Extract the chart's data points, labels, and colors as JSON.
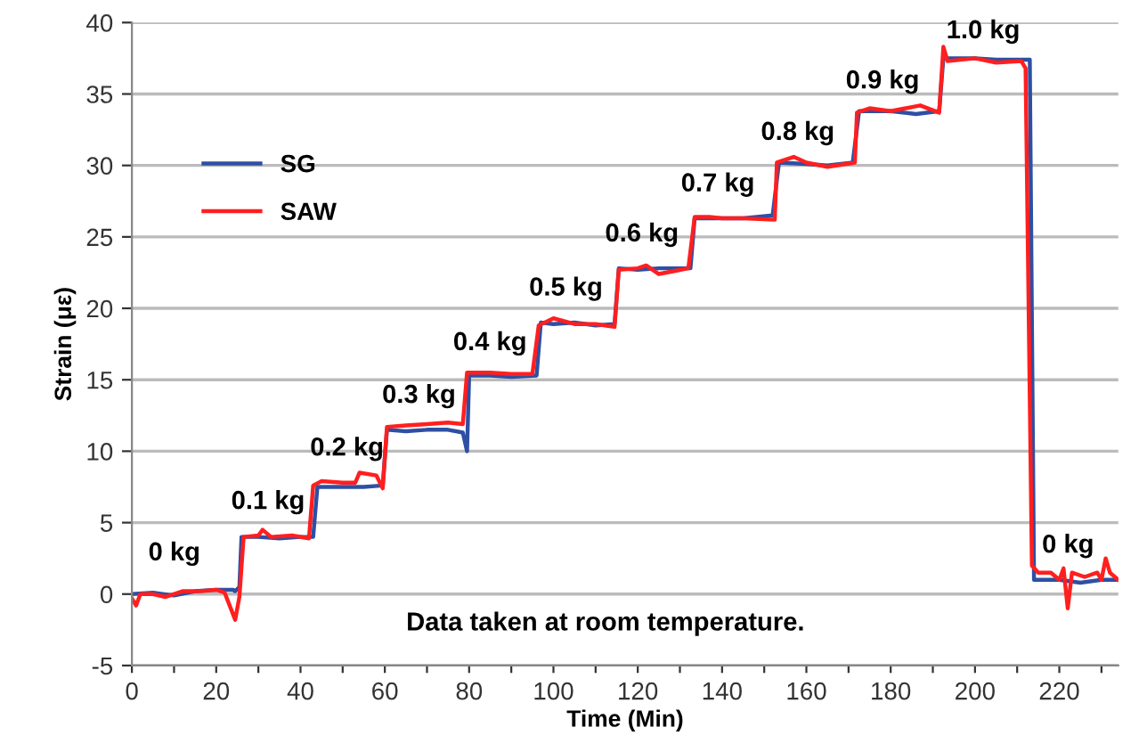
{
  "chart_data": {
    "type": "line",
    "xlabel": "Time (Min)",
    "ylabel": "Strain (με)",
    "xlim": [
      0,
      234
    ],
    "ylim": [
      -5,
      40
    ],
    "xticks": [
      0,
      {
        "value": 10,
        "label": null
      },
      20,
      {
        "value": 30,
        "label": null
      },
      40,
      {
        "value": 50,
        "label": null
      },
      60,
      {
        "value": 70,
        "label": null
      },
      80,
      {
        "value": 90,
        "label": null
      },
      100,
      {
        "value": 110,
        "label": null
      },
      120,
      {
        "value": 130,
        "label": null
      },
      140,
      {
        "value": 150,
        "label": null
      },
      160,
      {
        "value": 170,
        "label": null
      },
      180,
      {
        "value": 190,
        "label": null
      },
      200,
      {
        "value": 210,
        "label": null
      },
      220,
      {
        "value": 230,
        "label": null
      }
    ],
    "yticks": [
      -5,
      0,
      5,
      10,
      15,
      20,
      25,
      30,
      35,
      40
    ],
    "grid": "y",
    "legend": "top left",
    "marker": "none",
    "line_style": "solid",
    "series": [
      {
        "name": "SG",
        "color": "#2e4fa3",
        "x": [
          0,
          5,
          10,
          15,
          20,
          24,
          24.5,
          25.5,
          26,
          30,
          35,
          40,
          43,
          44,
          50,
          55,
          59.5,
          60.5,
          65,
          70,
          75,
          78.5,
          79.5,
          80,
          85,
          90,
          96,
          97,
          100,
          105,
          110,
          114.5,
          115.5,
          120,
          125,
          132.5,
          133.5,
          140,
          145,
          152,
          153.5,
          160,
          165,
          171,
          172.5,
          180,
          186,
          191.5,
          192.5,
          200,
          205,
          213,
          214,
          220,
          225,
          230,
          234
        ],
        "values": [
          0,
          0.1,
          -0.1,
          0.2,
          0.3,
          0.3,
          0.2,
          0.5,
          4.0,
          4.0,
          3.9,
          4.0,
          4.0,
          7.5,
          7.5,
          7.5,
          7.6,
          11.5,
          11.4,
          11.5,
          11.5,
          11.3,
          10.0,
          15.3,
          15.3,
          15.2,
          15.3,
          19.0,
          18.9,
          19.0,
          18.8,
          18.9,
          22.8,
          22.7,
          22.8,
          22.8,
          26.3,
          26.3,
          26.3,
          26.5,
          30.2,
          30.1,
          30.0,
          30.2,
          33.8,
          33.8,
          33.6,
          33.8,
          37.5,
          37.5,
          37.4,
          37.4,
          1.0,
          1.0,
          0.8,
          1.0,
          1.0
        ]
      },
      {
        "name": "SAW",
        "color": "#ff1f1f",
        "x": [
          0,
          1,
          2,
          5,
          8,
          12,
          16,
          20,
          22,
          24.5,
          25.5,
          26.5,
          30,
          31,
          33,
          38,
          42,
          43,
          45,
          50,
          53,
          54,
          58,
          59.5,
          60.5,
          65,
          70,
          75,
          78.5,
          79.5,
          85,
          90,
          95,
          96.5,
          100,
          105,
          110,
          114.5,
          115.5,
          120,
          122,
          125,
          132,
          133.5,
          137,
          140,
          145,
          152.5,
          153,
          157,
          160,
          165,
          171.5,
          172,
          175,
          180,
          187,
          191.5,
          192.5,
          193.5,
          200,
          205,
          211,
          212,
          213.5,
          215,
          218,
          220,
          221,
          222,
          223,
          226,
          229,
          230,
          231,
          232,
          234
        ],
        "values": [
          -0.3,
          -0.8,
          0.0,
          0.0,
          -0.2,
          0.2,
          0.2,
          0.3,
          0.1,
          -1.8,
          -0.2,
          4.0,
          4.1,
          4.5,
          4.0,
          4.1,
          3.9,
          7.6,
          7.9,
          7.8,
          7.8,
          8.5,
          8.3,
          7.4,
          11.7,
          11.8,
          11.9,
          12.0,
          11.9,
          15.5,
          15.5,
          15.4,
          15.4,
          18.8,
          19.3,
          18.9,
          18.9,
          18.7,
          22.7,
          22.8,
          23.0,
          22.4,
          22.8,
          26.4,
          26.4,
          26.3,
          26.3,
          26.2,
          30.2,
          30.6,
          30.2,
          29.9,
          30.2,
          33.7,
          34.0,
          33.8,
          34.2,
          33.7,
          38.3,
          37.3,
          37.5,
          37.2,
          37.3,
          36.8,
          2.0,
          1.5,
          1.5,
          1.0,
          1.8,
          -1.0,
          1.5,
          1.2,
          1.5,
          1.0,
          2.5,
          1.5,
          1.0
        ]
      }
    ],
    "annotations": [
      "0 kg",
      "0.1 kg",
      "0.2 kg",
      "0.3 kg",
      "0.4 kg",
      "0.5 kg",
      "0.6 kg",
      "0.7 kg",
      "0.8 kg",
      "0.9 kg",
      "1.0 kg",
      "0 kg",
      "Data taken at room temperature."
    ]
  }
}
